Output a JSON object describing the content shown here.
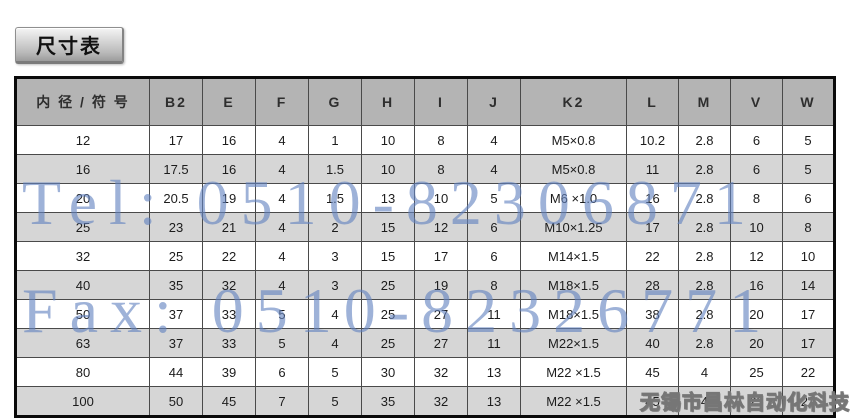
{
  "page": {
    "title_badge": "尺寸表"
  },
  "table": {
    "headers": [
      "内 径 / 符 号",
      "B2",
      "E",
      "F",
      "G",
      "H",
      "I",
      "J",
      "K2",
      "L",
      "M",
      "V",
      "W"
    ],
    "rows": [
      [
        "12",
        "17",
        "16",
        "4",
        "1",
        "10",
        "8",
        "4",
        "M5×0.8",
        "10.2",
        "2.8",
        "6",
        "5"
      ],
      [
        "16",
        "17.5",
        "16",
        "4",
        "1.5",
        "10",
        "8",
        "4",
        "M5×0.8",
        "11",
        "2.8",
        "6",
        "5"
      ],
      [
        "20",
        "20.5",
        "19",
        "4",
        "1.5",
        "13",
        "10",
        "5",
        "M6 ×1.0",
        "16",
        "2.8",
        "8",
        "6"
      ],
      [
        "25",
        "23",
        "21",
        "4",
        "2",
        "15",
        "12",
        "6",
        "M10×1.25",
        "17",
        "2.8",
        "10",
        "8"
      ],
      [
        "32",
        "25",
        "22",
        "4",
        "3",
        "15",
        "17",
        "6",
        "M14×1.5",
        "22",
        "2.8",
        "12",
        "10"
      ],
      [
        "40",
        "35",
        "32",
        "4",
        "3",
        "25",
        "19",
        "8",
        "M18×1.5",
        "28",
        "2.8",
        "16",
        "14"
      ],
      [
        "50",
        "37",
        "33",
        "5",
        "4",
        "25",
        "27",
        "11",
        "M18×1.5",
        "38",
        "2.8",
        "20",
        "17"
      ],
      [
        "63",
        "37",
        "33",
        "5",
        "4",
        "25",
        "27",
        "11",
        "M22×1.5",
        "40",
        "2.8",
        "20",
        "17"
      ],
      [
        "80",
        "44",
        "39",
        "6",
        "5",
        "30",
        "32",
        "13",
        "M22 ×1.5",
        "45",
        "4",
        "25",
        "22"
      ],
      [
        "100",
        "50",
        "45",
        "7",
        "5",
        "35",
        "32",
        "13",
        "M22 ×1.5",
        "45",
        "4",
        "25",
        "22"
      ]
    ]
  },
  "watermarks": {
    "tel": "Tel: 0510-82306871",
    "fax": "Fax: 0510-82326771",
    "company": "无锡市昌林自动化科技"
  },
  "colors": {
    "header_bg": "#b4b4b4",
    "row_gray_bg": "#d6d6d6",
    "row_white_bg": "#ffffff",
    "outer_border": "#0a0a0a",
    "watermark_blue": "#6282c0",
    "watermark_gray": "#b3b3b3"
  }
}
